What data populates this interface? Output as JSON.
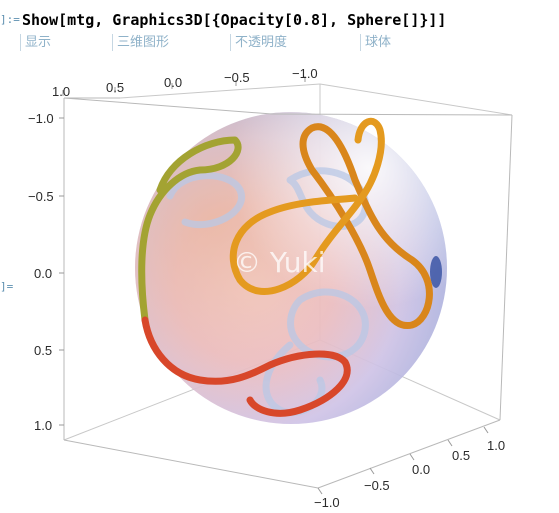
{
  "cell": {
    "in_label": "]:=",
    "out_label": "]=",
    "code": {
      "p1": "Show[mtg, Graphics3D[{Opacity[",
      "num": "0.8",
      "p2": "], Sphere[]}]]"
    },
    "tooltips": [
      "显示",
      "三维图形",
      "不透明度",
      "球体"
    ]
  },
  "plot": {
    "watermark": "© Yuki",
    "top_axis_ticks": [
      "1.0",
      "0.5",
      "0.0",
      "−0.5",
      "−1.0"
    ],
    "left_axis_ticks": [
      "−1.0",
      "−0.5",
      "0.0",
      "0.5",
      "1.0"
    ],
    "bottom_axis_ticks": [
      "−1.0",
      "−0.5",
      "0.0",
      "0.5",
      "1.0"
    ],
    "colors": {
      "box": "#b9b9b9",
      "tube_main": "#e49a1f",
      "tube_back": "#b9c8e6",
      "tube_red": "#d8472a",
      "tube_olive": "#a3a332"
    }
  }
}
